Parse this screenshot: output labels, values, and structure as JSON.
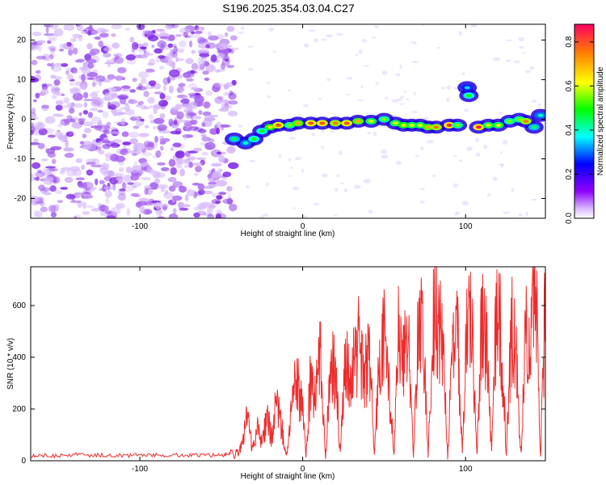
{
  "title": "S196.2025.354.03.04.C27",
  "colors": {
    "snr_line": "#ee2c2c",
    "scatter_bg": "#9b4fe0"
  },
  "chart_data": [
    {
      "type": "heatmap",
      "xlabel": "Height of straight line (km)",
      "ylabel": "Frequency (Hz)",
      "xlim": [
        -167,
        149
      ],
      "ylim": [
        -25,
        24
      ],
      "x_ticks": [
        -100,
        0,
        100
      ],
      "x_tick_labels": [
        "-100",
        "0",
        "100"
      ],
      "y_ticks": [
        -20,
        -10,
        0,
        10,
        20
      ],
      "y_tick_labels": [
        "-20",
        "-10",
        "0",
        "10",
        "20"
      ],
      "colorbar": {
        "label": "Normalized spectral amplitude",
        "range": [
          0,
          0.88
        ],
        "ticks": [
          0.0,
          0.2,
          0.4,
          0.6,
          0.8
        ],
        "tick_labels": [
          "0.0",
          "0.2",
          "0.4",
          "0.6",
          "0.8"
        ],
        "colormap": "rainbow"
      },
      "signal_track": [
        {
          "x": -42,
          "y": -5,
          "amp": 0.45
        },
        {
          "x": -35,
          "y": -6,
          "amp": 0.4
        },
        {
          "x": -30,
          "y": -5,
          "amp": 0.5
        },
        {
          "x": -25,
          "y": -3,
          "amp": 0.5
        },
        {
          "x": -20,
          "y": -2,
          "amp": 0.65
        },
        {
          "x": -15,
          "y": -1.5,
          "amp": 0.8
        },
        {
          "x": -8,
          "y": -1.5,
          "amp": 0.55
        },
        {
          "x": -3,
          "y": -1,
          "amp": 0.7
        },
        {
          "x": 5,
          "y": -1,
          "amp": 0.8
        },
        {
          "x": 12,
          "y": -1,
          "amp": 0.8
        },
        {
          "x": 20,
          "y": -1,
          "amp": 0.75
        },
        {
          "x": 27,
          "y": -1,
          "amp": 0.8
        },
        {
          "x": 34,
          "y": -0.5,
          "amp": 0.7
        },
        {
          "x": 42,
          "y": -0.5,
          "amp": 0.6
        },
        {
          "x": 50,
          "y": 0,
          "amp": 0.55
        },
        {
          "x": 57,
          "y": -1,
          "amp": 0.6
        },
        {
          "x": 62,
          "y": -1.5,
          "amp": 0.65
        },
        {
          "x": 67,
          "y": -1.5,
          "amp": 0.6
        },
        {
          "x": 72,
          "y": -1.5,
          "amp": 0.6
        },
        {
          "x": 77,
          "y": -2,
          "amp": 0.7
        },
        {
          "x": 82,
          "y": -2,
          "amp": 0.75
        },
        {
          "x": 90,
          "y": -1.5,
          "amp": 0.85
        },
        {
          "x": 95,
          "y": -1.5,
          "amp": 0.55
        },
        {
          "x": 101,
          "y": 8,
          "amp": 0.35
        },
        {
          "x": 102,
          "y": 6,
          "amp": 0.5
        },
        {
          "x": 108,
          "y": -2,
          "amp": 0.85
        },
        {
          "x": 114,
          "y": -1.5,
          "amp": 0.6
        },
        {
          "x": 120,
          "y": -1.5,
          "amp": 0.6
        },
        {
          "x": 127,
          "y": -0.5,
          "amp": 0.55
        },
        {
          "x": 133,
          "y": 0,
          "amp": 0.55
        },
        {
          "x": 137,
          "y": -0.5,
          "amp": 0.75
        },
        {
          "x": 142,
          "y": -2,
          "amp": 0.45
        },
        {
          "x": 146,
          "y": 1,
          "amp": 0.4
        }
      ]
    },
    {
      "type": "line",
      "xlabel": "Height of straight line (km)",
      "ylabel": "SNR (10 * v/v)",
      "xlim": [
        -167,
        149
      ],
      "ylim": [
        0,
        750
      ],
      "x_ticks": [
        -100,
        0,
        100
      ],
      "x_tick_labels": [
        "-100",
        "0",
        "100"
      ],
      "y_ticks": [
        0,
        200,
        400,
        600
      ],
      "y_tick_labels": [
        "0",
        "200",
        "400",
        "600"
      ],
      "series": [
        {
          "color": "#ee2c2c",
          "x": [
            -167,
            -160,
            -150,
            -140,
            -130,
            -120,
            -110,
            -100,
            -90,
            -80,
            -70,
            -60,
            -50,
            -45,
            -40,
            -37,
            -34,
            -31,
            -28,
            -25,
            -22,
            -19,
            -16,
            -13,
            -10,
            -7,
            -4,
            -1,
            2,
            5,
            8,
            11,
            14,
            17,
            20,
            23,
            26,
            29,
            32,
            35,
            38,
            41,
            44,
            47,
            50,
            53,
            56,
            59,
            62,
            65,
            68,
            71,
            74,
            77,
            80,
            83,
            86,
            89,
            92,
            95,
            98,
            101,
            104,
            107,
            110,
            113,
            116,
            119,
            122,
            125,
            128,
            131,
            134,
            137,
            140,
            143,
            146,
            149
          ],
          "y": [
            20,
            22,
            18,
            25,
            20,
            22,
            19,
            24,
            21,
            23,
            20,
            22,
            22,
            25,
            28,
            60,
            180,
            40,
            120,
            70,
            170,
            90,
            230,
            130,
            20,
            200,
            300,
            250,
            20,
            350,
            260,
            400,
            20,
            330,
            360,
            20,
            380,
            300,
            420,
            450,
            320,
            430,
            20,
            380,
            470,
            300,
            20,
            520,
            400,
            450,
            20,
            560,
            480,
            20,
            600,
            520,
            450,
            20,
            430,
            500,
            20,
            620,
            480,
            20,
            550,
            430,
            20,
            600,
            480,
            20,
            520,
            400,
            20,
            500,
            450,
            680,
            20,
            640
          ]
        }
      ]
    }
  ]
}
